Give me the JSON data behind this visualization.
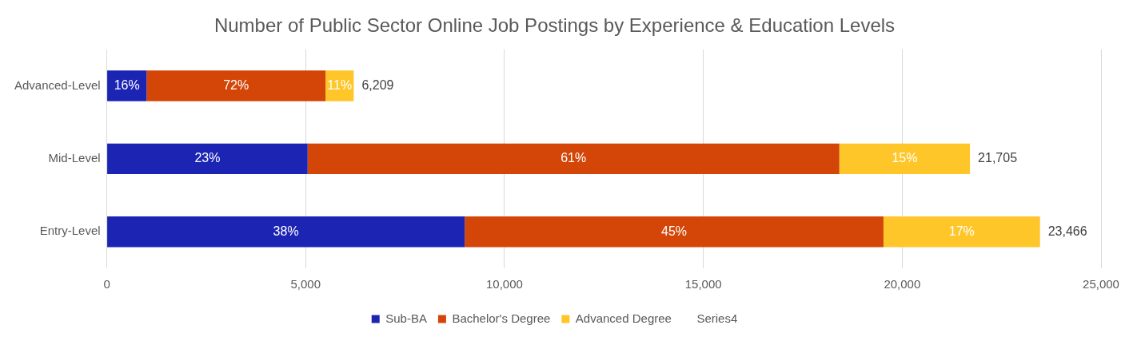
{
  "chart_data": {
    "type": "bar",
    "orientation": "horizontal",
    "stacked": true,
    "title": "Number of Public Sector Online Job Postings by Experience & Education Levels",
    "categories": [
      "Advanced-Level",
      "Mid-Level",
      "Entry-Level"
    ],
    "series": [
      {
        "name": "Sub-BA",
        "color": "#1c24b4",
        "values": [
          1000,
          5050,
          9000
        ]
      },
      {
        "name": "Bachelor's Degree",
        "color": "#d44508",
        "values": [
          4500,
          13370,
          10530
        ]
      },
      {
        "name": "Advanced Degree",
        "color": "#ffc629",
        "values": [
          709,
          3285,
          3936
        ]
      },
      {
        "name": "Series4",
        "values": [
          null,
          null,
          null
        ]
      }
    ],
    "totals": [
      "6,209",
      "21,705",
      "23,466"
    ],
    "annotations": [
      "16%",
      "72%",
      "11%",
      "23%",
      "61%",
      "15%",
      "38%",
      "45%",
      "17%"
    ],
    "xlim": [
      0,
      25000
    ],
    "xticks": [
      0,
      {
        "value": 5000,
        "label": "5,000"
      },
      {
        "value": 10000,
        "label": "10,000"
      },
      {
        "value": 15000,
        "label": "15,000"
      },
      {
        "value": 20000,
        "label": "20,000"
      },
      {
        "value": 25000,
        "label": "25,000"
      }
    ],
    "grid": "x",
    "legend": "bottom"
  }
}
